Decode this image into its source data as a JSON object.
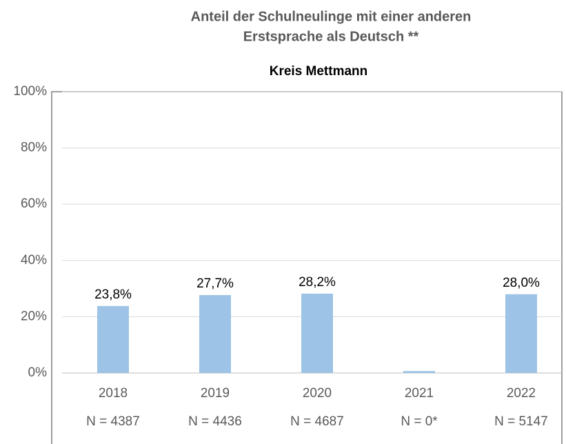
{
  "chart_data": {
    "type": "bar",
    "title": [
      "Anteil der Schulneulinge mit einer anderen",
      "Erstsprache als Deutsch **"
    ],
    "subtitle": "Kreis Mettmann",
    "categories": [
      "2018",
      "2019",
      "2020",
      "2021",
      "2022"
    ],
    "n_labels": [
      "N = 4387",
      "N = 4436",
      "N = 4687",
      "N = 0*",
      "N = 5147"
    ],
    "values": [
      23.8,
      27.7,
      28.2,
      0.7,
      28.0
    ],
    "value_labels": [
      "23,8%",
      "27,7%",
      "28,2%",
      null,
      "28,0%"
    ],
    "color": "#9dc3e6",
    "ylim": [
      0,
      100
    ],
    "yticks": [
      {
        "value": 0,
        "label": "0%"
      },
      {
        "value": 20,
        "label": "20%"
      },
      {
        "value": 40,
        "label": "40%"
      },
      {
        "value": 60,
        "label": "60%"
      },
      {
        "value": 80,
        "label": "80%"
      },
      {
        "value": 100,
        "label": "100%"
      }
    ],
    "grid": true
  }
}
